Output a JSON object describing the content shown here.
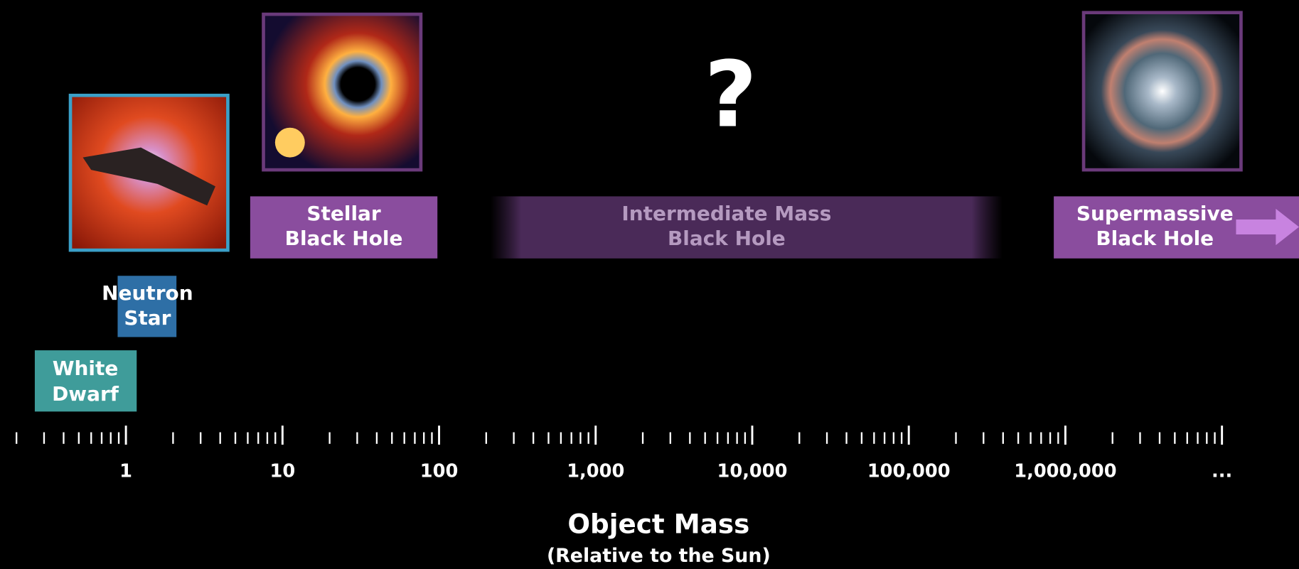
{
  "objects": [
    {
      "label": [
        "White",
        "Dwarf"
      ]
    },
    {
      "label": [
        "Neutron",
        "Star"
      ]
    },
    {
      "label": [
        "Stellar",
        "Black Hole"
      ]
    },
    {
      "label": [
        "Intermediate Mass",
        "Black Hole"
      ]
    },
    {
      "label": [
        "Supermassive",
        "Black Hole"
      ]
    }
  ],
  "unknown_mark": "?",
  "axis": {
    "labels": [
      "1",
      "10",
      "100",
      "1,000",
      "10,000",
      "100,000",
      "1,000,000",
      "..."
    ],
    "title": "Object Mass",
    "subtitle": "(Relative to the Sun)"
  }
}
